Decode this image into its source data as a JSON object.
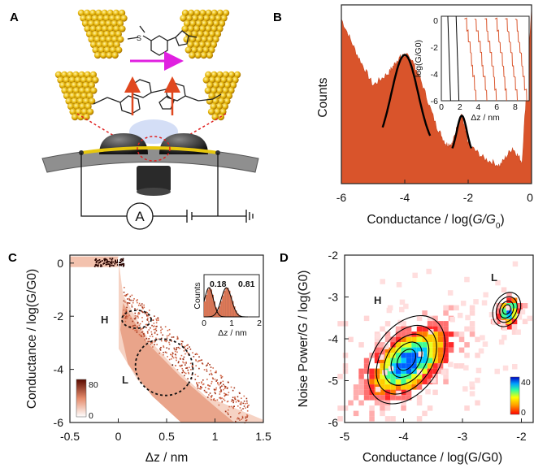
{
  "panels": {
    "A": {
      "label": "A",
      "ammeter_symbol": "A"
    },
    "B": {
      "label": "B",
      "ylabel": "Counts",
      "xlabel_prefix": "Conductance / log(",
      "xlabel_italic": "G/G",
      "xlabel_sub": "0",
      "xlabel_suffix": ")",
      "xticks": [
        "-6",
        "-4",
        "-2",
        "0"
      ],
      "inset": {
        "ylabel": "log(G/G0)",
        "xlabel": "Δz / nm",
        "yticks": [
          "0",
          "-2",
          "-4",
          "-6"
        ],
        "xticks": [
          "0",
          "2",
          "4",
          "6",
          "8"
        ]
      }
    },
    "C": {
      "label": "C",
      "ylabel": "Conductance / log(G/G0)",
      "xlabel": "Δz / nm",
      "yticks": [
        "0",
        "-2",
        "-4",
        "-6"
      ],
      "xticks": [
        "-0.5",
        "0",
        "0.5",
        "1",
        "1.5"
      ],
      "region_H": "H",
      "region_L": "L",
      "colorbar": {
        "max": "80",
        "min": "0"
      },
      "inset": {
        "ylabel": "Counts",
        "xlabel": "Δz / nm",
        "peak1": "0.18",
        "peak2": "0.81",
        "xticks": [
          "0",
          "1",
          "2"
        ]
      }
    },
    "D": {
      "label": "D",
      "ylabel": "Noise Power/G / log(G0)",
      "xlabel": "Conductance / log(G/G0)",
      "yticks": [
        "-2",
        "-3",
        "-4",
        "-5",
        "-6"
      ],
      "xticks": [
        "-5",
        "-4",
        "-3",
        "-2"
      ],
      "region_H": "H",
      "region_L": "L",
      "colorbar": {
        "max": "40",
        "min": "0"
      }
    }
  },
  "chart_data": [
    {
      "type": "area",
      "panel": "B",
      "xlabel": "Conductance / log(G/G0)",
      "ylabel": "Counts",
      "xlim": [
        -6,
        0
      ],
      "x": [
        -6,
        -5.5,
        -5,
        -4.5,
        -4.2,
        -4,
        -3.8,
        -3.5,
        -3,
        -2.7,
        -2.5,
        -2.3,
        -2.2,
        -2.0,
        -1.5,
        -1.0,
        -0.6,
        -0.3,
        0
      ],
      "values": [
        0.92,
        0.72,
        0.55,
        0.62,
        0.7,
        0.72,
        0.7,
        0.58,
        0.32,
        0.22,
        0.22,
        0.35,
        0.38,
        0.22,
        0.14,
        0.1,
        0.2,
        0.12,
        0.98
      ],
      "gaussian_fits": [
        {
          "center": -4.0,
          "range": [
            -4.7,
            -3.2
          ]
        },
        {
          "center": -2.2,
          "range": [
            -2.5,
            -1.9
          ]
        }
      ]
    },
    {
      "type": "line",
      "panel": "B-inset",
      "xlabel": "Δz / nm",
      "ylabel": "log(G/G0)",
      "xlim": [
        0,
        9.5
      ],
      "ylim": [
        -6,
        0.3
      ]
    },
    {
      "type": "heatmap",
      "panel": "C",
      "xlabel": "Δz / nm",
      "ylabel": "Conductance / log(G/G0)",
      "xlim": [
        -0.5,
        1.5
      ],
      "ylim": [
        -6,
        0.3
      ],
      "colorbar_range": [
        0,
        80
      ],
      "regions": [
        {
          "name": "H",
          "center": [
            0.18,
            -2.2
          ]
        },
        {
          "name": "L",
          "center": [
            0.43,
            -4.0
          ]
        }
      ]
    },
    {
      "type": "bar",
      "panel": "C-inset",
      "xlabel": "Δz / nm",
      "ylabel": "Counts",
      "xlim": [
        0,
        2
      ],
      "peaks": [
        0.18,
        0.81
      ]
    },
    {
      "type": "heatmap",
      "panel": "D",
      "xlabel": "Conductance / log(G/G0)",
      "ylabel": "Noise Power/G / log(G0)",
      "xlim": [
        -5,
        -1.8
      ],
      "ylim": [
        -6,
        -2
      ],
      "colorbar_range": [
        0,
        40
      ],
      "clusters": [
        {
          "name": "H",
          "center": [
            -3.95,
            -4.55
          ]
        },
        {
          "name": "L",
          "center": [
            -2.25,
            -3.3
          ]
        }
      ]
    }
  ]
}
